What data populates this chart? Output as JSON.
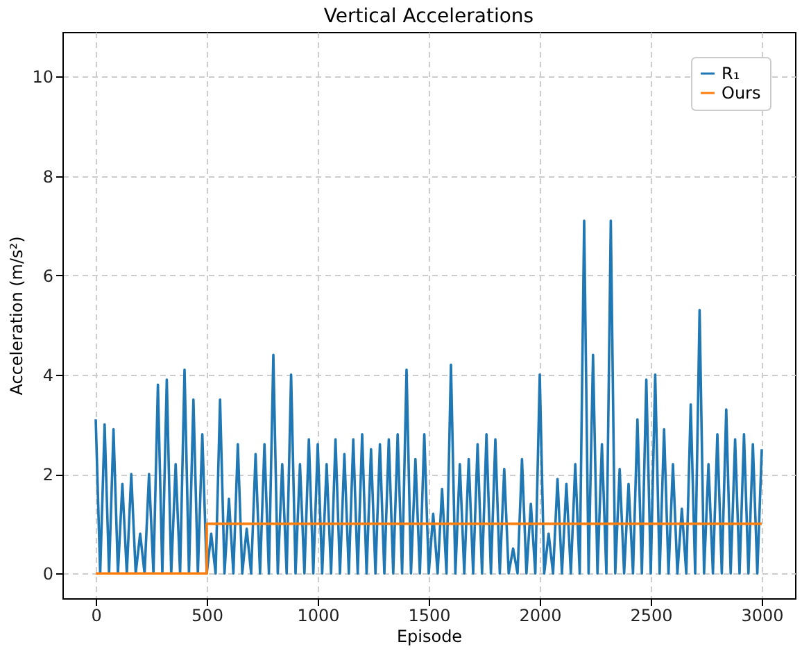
{
  "chart_data": {
    "type": "line",
    "title": "Vertical Accelerations",
    "xlabel": "Episode",
    "ylabel": "Acceleration (m/s²)",
    "xlim": [
      -150,
      3150
    ],
    "ylim": [
      -0.5,
      10.9
    ],
    "xticks": [
      0,
      500,
      1000,
      1500,
      2000,
      2500,
      3000
    ],
    "yticks": [
      0,
      2,
      4,
      6,
      8,
      10
    ],
    "grid": true,
    "legend": "top right",
    "line_style": "solid",
    "series": [
      {
        "name": "R₁",
        "color": "#1f77b4",
        "x": [
          0,
          20,
          40,
          60,
          80,
          100,
          120,
          140,
          160,
          180,
          200,
          220,
          240,
          260,
          280,
          300,
          320,
          340,
          360,
          380,
          400,
          420,
          440,
          460,
          480,
          500,
          520,
          540,
          560,
          580,
          600,
          620,
          640,
          660,
          680,
          700,
          720,
          740,
          760,
          780,
          800,
          820,
          840,
          860,
          880,
          900,
          920,
          940,
          960,
          980,
          1000,
          1020,
          1040,
          1060,
          1080,
          1100,
          1120,
          1140,
          1160,
          1180,
          1200,
          1220,
          1240,
          1260,
          1280,
          1300,
          1320,
          1340,
          1360,
          1380,
          1400,
          1420,
          1440,
          1460,
          1480,
          1500,
          1520,
          1540,
          1560,
          1580,
          1600,
          1620,
          1640,
          1660,
          1680,
          1700,
          1720,
          1740,
          1760,
          1780,
          1800,
          1820,
          1840,
          1860,
          1880,
          1900,
          1920,
          1940,
          1960,
          1980,
          2000,
          2020,
          2040,
          2060,
          2080,
          2100,
          2120,
          2140,
          2160,
          2180,
          2200,
          2220,
          2240,
          2260,
          2280,
          2300,
          2320,
          2340,
          2360,
          2380,
          2400,
          2420,
          2440,
          2460,
          2480,
          2500,
          2520,
          2540,
          2560,
          2580,
          2600,
          2620,
          2640,
          2660,
          2680,
          2700,
          2720,
          2740,
          2760,
          2780,
          2800,
          2820,
          2840,
          2860,
          2880,
          2900,
          2920,
          2940,
          2960,
          2980,
          3000
        ],
        "values": [
          3.1,
          0,
          3.0,
          0,
          2.9,
          0,
          1.8,
          0,
          2.0,
          0,
          0.8,
          0,
          2.0,
          0,
          3.8,
          0,
          3.9,
          0,
          2.2,
          0,
          4.1,
          0,
          3.5,
          0,
          2.8,
          0,
          0.8,
          0,
          3.5,
          0,
          1.5,
          0,
          2.6,
          0,
          0.9,
          0,
          2.4,
          0,
          2.6,
          0,
          4.4,
          0,
          2.2,
          0,
          4.0,
          0,
          2.2,
          0,
          2.7,
          0,
          2.6,
          0,
          2.2,
          0,
          2.7,
          0,
          2.4,
          0,
          2.7,
          0,
          2.8,
          0,
          2.5,
          0,
          2.6,
          0,
          2.7,
          0,
          2.8,
          0,
          4.1,
          0,
          2.3,
          0,
          2.8,
          0,
          1.2,
          0,
          1.7,
          0,
          4.2,
          0,
          2.2,
          0,
          2.3,
          0,
          2.6,
          0,
          2.8,
          0,
          2.7,
          0,
          2.1,
          0,
          0.5,
          0,
          2.3,
          0,
          1.4,
          0,
          4.0,
          0,
          0.8,
          0,
          1.9,
          0,
          1.8,
          0,
          2.2,
          0,
          7.1,
          0,
          4.4,
          0,
          2.6,
          0,
          7.1,
          0,
          2.1,
          0,
          1.8,
          0,
          3.1,
          0,
          3.9,
          0,
          4.0,
          0,
          2.9,
          0,
          2.2,
          0,
          1.3,
          0,
          3.4,
          0,
          5.3,
          0,
          2.2,
          0,
          2.8,
          0,
          3.3,
          0,
          2.7,
          0,
          2.8,
          0,
          2.6,
          0,
          2.5
        ]
      },
      {
        "name": "Ours",
        "color": "#ff7f0e",
        "x": [
          0,
          500,
          500,
          3000
        ],
        "values": [
          0,
          0,
          1,
          1
        ]
      }
    ]
  }
}
